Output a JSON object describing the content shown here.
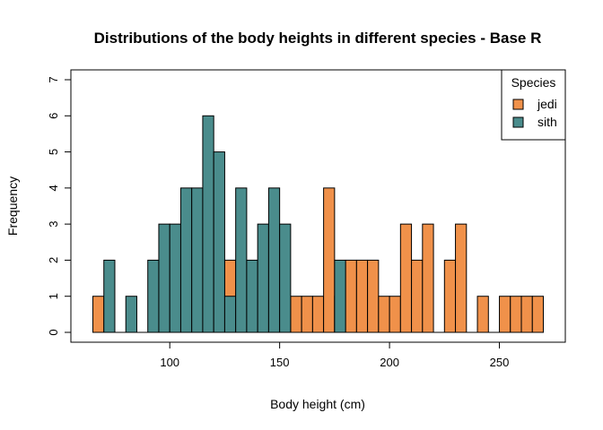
{
  "chart_data": {
    "type": "bar",
    "subtype": "histogram",
    "title": "Distributions of the body heights in different species - Base R",
    "xlabel": "Body height (cm)",
    "ylabel": "Frequency",
    "xlim": [
      55,
      280
    ],
    "ylim": [
      0,
      7
    ],
    "xticks": [
      100,
      150,
      200,
      250
    ],
    "yticks": [
      0,
      1,
      2,
      3,
      4,
      5,
      6,
      7
    ],
    "bin_width": 5,
    "grid": false,
    "legend": {
      "title": "Species",
      "position": "top-right"
    },
    "series": [
      {
        "name": "jedi",
        "color": "#F0914A",
        "bins": [
          {
            "x": 65,
            "count": 1
          },
          {
            "x": 125,
            "count": 2
          },
          {
            "x": 155,
            "count": 1
          },
          {
            "x": 160,
            "count": 1
          },
          {
            "x": 165,
            "count": 1
          },
          {
            "x": 170,
            "count": 4
          },
          {
            "x": 175,
            "count": 1
          },
          {
            "x": 180,
            "count": 2
          },
          {
            "x": 185,
            "count": 2
          },
          {
            "x": 190,
            "count": 2
          },
          {
            "x": 195,
            "count": 1
          },
          {
            "x": 200,
            "count": 1
          },
          {
            "x": 205,
            "count": 3
          },
          {
            "x": 210,
            "count": 2
          },
          {
            "x": 215,
            "count": 3
          },
          {
            "x": 225,
            "count": 2
          },
          {
            "x": 230,
            "count": 3
          },
          {
            "x": 240,
            "count": 1
          },
          {
            "x": 250,
            "count": 1
          },
          {
            "x": 255,
            "count": 1
          },
          {
            "x": 260,
            "count": 1
          },
          {
            "x": 265,
            "count": 1
          }
        ]
      },
      {
        "name": "sith",
        "color": "#4A8C8C",
        "bins": [
          {
            "x": 70,
            "count": 2
          },
          {
            "x": 80,
            "count": 1
          },
          {
            "x": 90,
            "count": 2
          },
          {
            "x": 95,
            "count": 3
          },
          {
            "x": 100,
            "count": 3
          },
          {
            "x": 105,
            "count": 4
          },
          {
            "x": 110,
            "count": 4
          },
          {
            "x": 115,
            "count": 6
          },
          {
            "x": 120,
            "count": 5
          },
          {
            "x": 125,
            "count": 1
          },
          {
            "x": 130,
            "count": 4
          },
          {
            "x": 135,
            "count": 2
          },
          {
            "x": 140,
            "count": 3
          },
          {
            "x": 145,
            "count": 4
          },
          {
            "x": 150,
            "count": 3
          },
          {
            "x": 175,
            "count": 2
          }
        ]
      }
    ]
  }
}
